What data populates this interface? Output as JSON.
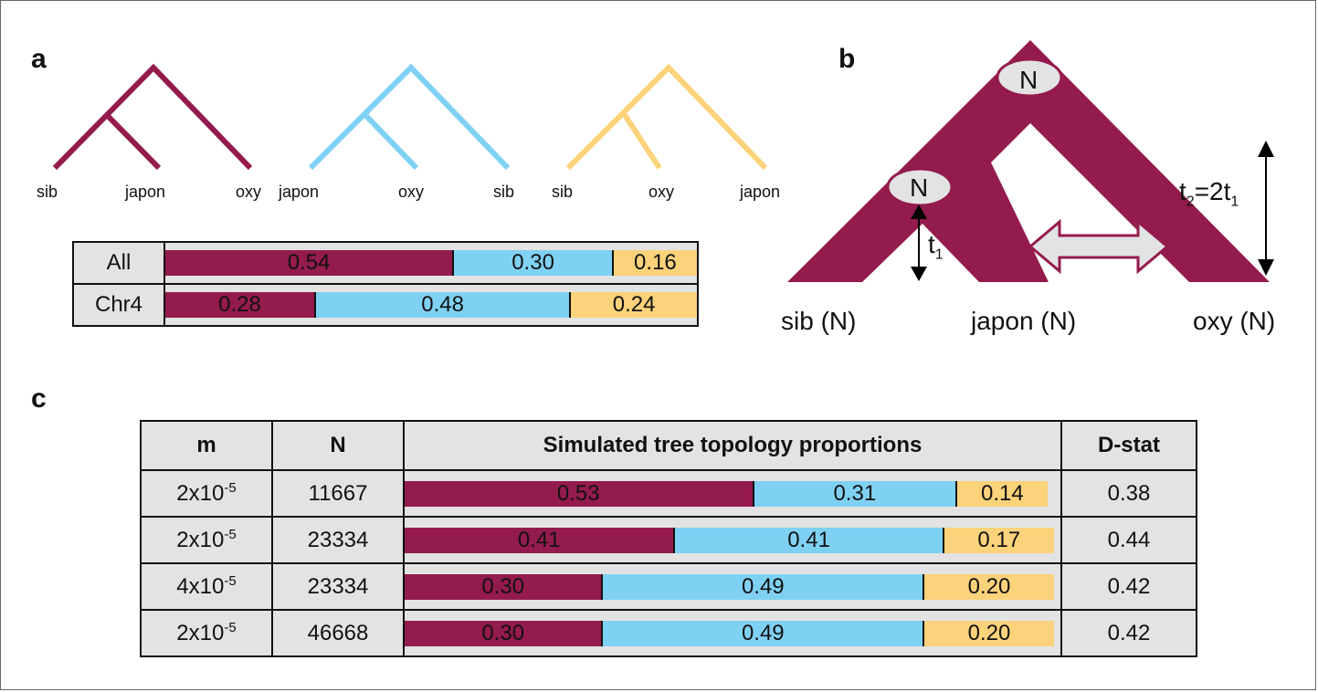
{
  "colors": {
    "maroon": "#941b4d",
    "cyan": "#7fd1f3",
    "yellow": "#fcd27a",
    "gray": "#e3e3e3"
  },
  "panel_a": {
    "label": "a",
    "trees": [
      {
        "color": "maroon",
        "leaves": [
          "sib",
          "japon",
          "oxy"
        ]
      },
      {
        "color": "cyan",
        "leaves": [
          "japon",
          "oxy",
          "sib"
        ]
      },
      {
        "color": "yellow",
        "leaves": [
          "sib",
          "oxy",
          "japon"
        ]
      }
    ],
    "table": [
      {
        "label": "All",
        "values": [
          "0.54",
          "0.30",
          "0.16"
        ],
        "fractions": [
          0.54,
          0.3,
          0.16
        ]
      },
      {
        "label": "Chr4",
        "values": [
          "0.28",
          "0.48",
          "0.24"
        ],
        "fractions": [
          0.28,
          0.48,
          0.24
        ]
      }
    ]
  },
  "panel_b": {
    "label": "b",
    "node_label": "N",
    "t1": "t",
    "t1_sub": "1",
    "t2_a": "t",
    "t2_sub": "2",
    "t2_b": "=2t",
    "t2_sub2": "1",
    "leaves": [
      "sib (N)",
      "japon (N)",
      "oxy (N)"
    ]
  },
  "panel_c": {
    "label": "c",
    "headers": {
      "m": "m",
      "n": "N",
      "proportions": "Simulated tree topology proportions",
      "dstat": "D-stat"
    },
    "rows": [
      {
        "m_base": "2x10",
        "m_exp": "-5",
        "n": "11667",
        "values": [
          "0.53",
          "0.31",
          "0.14"
        ],
        "fractions": [
          0.53,
          0.31,
          0.14
        ],
        "dstat": "0.38"
      },
      {
        "m_base": "2x10",
        "m_exp": "-5",
        "n": "23334",
        "values": [
          "0.41",
          "0.41",
          "0.17"
        ],
        "fractions": [
          0.41,
          0.41,
          0.17
        ],
        "dstat": "0.44"
      },
      {
        "m_base": "4x10",
        "m_exp": "-5",
        "n": "23334",
        "values": [
          "0.30",
          "0.49",
          "0.20"
        ],
        "fractions": [
          0.3,
          0.49,
          0.2
        ],
        "dstat": "0.42"
      },
      {
        "m_base": "2x10",
        "m_exp": "-5",
        "n": "46668",
        "values": [
          "0.30",
          "0.49",
          "0.20"
        ],
        "fractions": [
          0.3,
          0.49,
          0.2
        ],
        "dstat": "0.42"
      }
    ]
  }
}
